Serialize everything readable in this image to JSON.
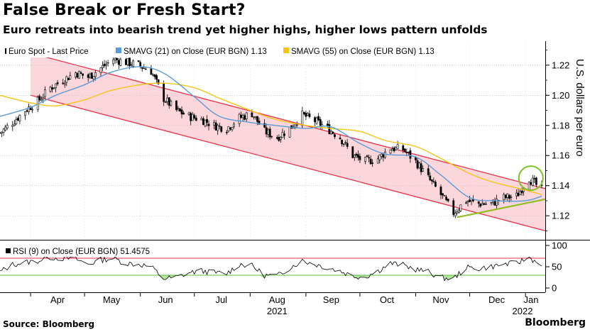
{
  "header": {
    "title": "False Break or Fresh Start?",
    "subtitle": "Euro retreats into bearish trend yet higher highs, higher lows pattern unfolds"
  },
  "footer": {
    "source": "Source: Bloomberg",
    "brand": "Bloomberg"
  },
  "colors": {
    "channel_fill": "#fbd7dc",
    "channel_line": "#e8334a",
    "sma21": "#5b9bd5",
    "sma55": "#f5c518",
    "support_line": "#8fbf1f",
    "circle": "#7cc11f",
    "rsi_oversold_fill": "#b6e3a2",
    "rsi_overbought_fill": "#f6b8bf",
    "rsi_upper_line": "#e8334a",
    "rsi_lower_line": "#5cbd3a"
  },
  "chart_data": [
    {
      "type": "line",
      "chart_style": "candlestick",
      "legend": [
        {
          "label": "Euro Spot - Last Price",
          "color": "#000000",
          "icon": "candle-icon"
        },
        {
          "label": "SMAVG (21)  on Close (EUR BGN) 1.13",
          "color": "#5b9bd5"
        },
        {
          "label": "SMAVG (55)  on Close (EUR BGN) 1.13",
          "color": "#f5c518"
        }
      ],
      "ylabel": "U.S. dollars per euro",
      "y_axis_position": "right",
      "ylim": [
        1.105,
        1.235
      ],
      "yticks": [
        1.12,
        1.14,
        1.16,
        1.18,
        1.2,
        1.22
      ],
      "ytick_labels": [
        "1.12",
        "1.14",
        "1.16",
        "1.18",
        "1.20",
        "1.22"
      ],
      "x_ticks": [
        {
          "date": "2021-04-01",
          "label": "Apr"
        },
        {
          "date": "2021-05-01",
          "label": "May"
        },
        {
          "date": "2021-06-01",
          "label": "Jun"
        },
        {
          "date": "2021-07-01",
          "label": "Jul"
        },
        {
          "date": "2021-08-01",
          "label": "Aug"
        },
        {
          "date": "2021-09-01",
          "label": "Sep"
        },
        {
          "date": "2021-10-01",
          "label": "Oct"
        },
        {
          "date": "2021-11-01",
          "label": "Nov"
        },
        {
          "date": "2021-12-01",
          "label": "Dec"
        },
        {
          "date": "2022-01-01",
          "label": "Jan"
        }
      ],
      "year_labels": [
        {
          "date": "2021-08-16",
          "label": "2021"
        },
        {
          "date": "2022-01-05",
          "label": "2022"
        }
      ],
      "xlim": [
        "2021-03-15",
        "2022-01-12"
      ],
      "series": [
        {
          "name": "Euro Spot - Last Price",
          "kind": "close",
          "points": [
            {
              "date": "2021-03-15",
              "y": 1.175
            },
            {
              "date": "2021-03-22",
              "y": 1.182
            },
            {
              "date": "2021-03-29",
              "y": 1.19
            },
            {
              "date": "2021-04-05",
              "y": 1.196
            },
            {
              "date": "2021-04-12",
              "y": 1.205
            },
            {
              "date": "2021-04-19",
              "y": 1.21
            },
            {
              "date": "2021-04-26",
              "y": 1.215
            },
            {
              "date": "2021-05-03",
              "y": 1.212
            },
            {
              "date": "2021-05-10",
              "y": 1.218
            },
            {
              "date": "2021-05-17",
              "y": 1.224
            },
            {
              "date": "2021-05-24",
              "y": 1.222
            },
            {
              "date": "2021-05-31",
              "y": 1.22
            },
            {
              "date": "2021-06-07",
              "y": 1.216
            },
            {
              "date": "2021-06-14",
              "y": 1.198
            },
            {
              "date": "2021-06-21",
              "y": 1.19
            },
            {
              "date": "2021-06-28",
              "y": 1.186
            },
            {
              "date": "2021-07-05",
              "y": 1.184
            },
            {
              "date": "2021-07-12",
              "y": 1.18
            },
            {
              "date": "2021-07-19",
              "y": 1.178
            },
            {
              "date": "2021-07-26",
              "y": 1.185
            },
            {
              "date": "2021-08-02",
              "y": 1.188
            },
            {
              "date": "2021-08-09",
              "y": 1.176
            },
            {
              "date": "2021-08-16",
              "y": 1.172
            },
            {
              "date": "2021-08-23",
              "y": 1.178
            },
            {
              "date": "2021-08-30",
              "y": 1.187
            },
            {
              "date": "2021-09-06",
              "y": 1.183
            },
            {
              "date": "2021-09-13",
              "y": 1.178
            },
            {
              "date": "2021-09-20",
              "y": 1.172
            },
            {
              "date": "2021-09-27",
              "y": 1.16
            },
            {
              "date": "2021-10-04",
              "y": 1.156
            },
            {
              "date": "2021-10-11",
              "y": 1.158
            },
            {
              "date": "2021-10-18",
              "y": 1.165
            },
            {
              "date": "2021-10-25",
              "y": 1.164
            },
            {
              "date": "2021-11-01",
              "y": 1.156
            },
            {
              "date": "2021-11-08",
              "y": 1.145
            },
            {
              "date": "2021-11-15",
              "y": 1.134
            },
            {
              "date": "2021-11-22",
              "y": 1.122
            },
            {
              "date": "2021-11-29",
              "y": 1.13
            },
            {
              "date": "2021-12-06",
              "y": 1.128
            },
            {
              "date": "2021-12-13",
              "y": 1.128
            },
            {
              "date": "2021-12-20",
              "y": 1.132
            },
            {
              "date": "2021-12-27",
              "y": 1.133
            },
            {
              "date": "2022-01-03",
              "y": 1.145
            },
            {
              "date": "2022-01-10",
              "y": 1.137
            }
          ]
        },
        {
          "name": "SMAVG (21)  on Close (EUR BGN) 1.13",
          "kind": "line",
          "color": "#5b9bd5",
          "points": [
            {
              "date": "2021-03-15",
              "y": 1.186
            },
            {
              "date": "2021-04-01",
              "y": 1.192
            },
            {
              "date": "2021-04-15",
              "y": 1.2
            },
            {
              "date": "2021-05-01",
              "y": 1.207
            },
            {
              "date": "2021-05-15",
              "y": 1.215
            },
            {
              "date": "2021-06-01",
              "y": 1.219
            },
            {
              "date": "2021-06-15",
              "y": 1.214
            },
            {
              "date": "2021-07-01",
              "y": 1.199
            },
            {
              "date": "2021-07-15",
              "y": 1.186
            },
            {
              "date": "2021-08-01",
              "y": 1.182
            },
            {
              "date": "2021-08-15",
              "y": 1.18
            },
            {
              "date": "2021-09-01",
              "y": 1.178
            },
            {
              "date": "2021-09-15",
              "y": 1.179
            },
            {
              "date": "2021-10-01",
              "y": 1.168
            },
            {
              "date": "2021-10-15",
              "y": 1.161
            },
            {
              "date": "2021-11-01",
              "y": 1.159
            },
            {
              "date": "2021-11-15",
              "y": 1.147
            },
            {
              "date": "2021-12-01",
              "y": 1.132
            },
            {
              "date": "2021-12-15",
              "y": 1.13
            },
            {
              "date": "2022-01-01",
              "y": 1.13
            },
            {
              "date": "2022-01-10",
              "y": 1.133
            }
          ]
        },
        {
          "name": "SMAVG (55)  on Close (EUR BGN) 1.13",
          "kind": "line",
          "color": "#f5c518",
          "points": [
            {
              "date": "2021-03-15",
              "y": 1.2
            },
            {
              "date": "2021-04-01",
              "y": 1.195
            },
            {
              "date": "2021-04-15",
              "y": 1.193
            },
            {
              "date": "2021-05-01",
              "y": 1.197
            },
            {
              "date": "2021-05-15",
              "y": 1.203
            },
            {
              "date": "2021-06-01",
              "y": 1.207
            },
            {
              "date": "2021-06-15",
              "y": 1.208
            },
            {
              "date": "2021-07-01",
              "y": 1.205
            },
            {
              "date": "2021-07-15",
              "y": 1.198
            },
            {
              "date": "2021-08-01",
              "y": 1.19
            },
            {
              "date": "2021-08-15",
              "y": 1.184
            },
            {
              "date": "2021-09-01",
              "y": 1.18
            },
            {
              "date": "2021-09-15",
              "y": 1.178
            },
            {
              "date": "2021-10-01",
              "y": 1.176
            },
            {
              "date": "2021-10-15",
              "y": 1.17
            },
            {
              "date": "2021-11-01",
              "y": 1.166
            },
            {
              "date": "2021-11-15",
              "y": 1.158
            },
            {
              "date": "2021-12-01",
              "y": 1.148
            },
            {
              "date": "2021-12-15",
              "y": 1.142
            },
            {
              "date": "2022-01-01",
              "y": 1.137
            },
            {
              "date": "2022-01-10",
              "y": 1.134
            }
          ]
        }
      ],
      "annotations": [
        {
          "type": "channel_upper",
          "points": [
            {
              "date": "2021-04-01",
              "y": 1.228
            },
            {
              "date": "2022-01-12",
              "y": 1.138
            }
          ]
        },
        {
          "type": "channel_lower",
          "points": [
            {
              "date": "2021-04-01",
              "y": 1.2
            },
            {
              "date": "2022-01-12",
              "y": 1.11
            }
          ]
        },
        {
          "type": "support_line",
          "points": [
            {
              "date": "2021-11-24",
              "y": 1.119
            },
            {
              "date": "2022-01-12",
              "y": 1.131
            }
          ]
        },
        {
          "type": "circle",
          "center": {
            "date": "2022-01-04",
            "y": 1.145
          }
        }
      ]
    },
    {
      "type": "line",
      "legend": [
        {
          "label": "RSI (9)  on Close (EUR BGN) 51.4575",
          "color": "#000000",
          "icon": "square-icon"
        }
      ],
      "y_axis_position": "right",
      "ylim": [
        -10,
        110
      ],
      "yticks": [
        0,
        50,
        100
      ],
      "ytick_labels": [
        "0",
        "50",
        "100"
      ],
      "reference_lines": [
        {
          "y": 70,
          "color": "#e8334a"
        },
        {
          "y": 30,
          "color": "#5cbd3a"
        }
      ],
      "series": [
        {
          "name": "RSI (9)  on Close (EUR BGN) 51.4575",
          "points": [
            {
              "date": "2021-03-15",
              "y": 38
            },
            {
              "date": "2021-03-22",
              "y": 55
            },
            {
              "date": "2021-03-29",
              "y": 60
            },
            {
              "date": "2021-04-05",
              "y": 64
            },
            {
              "date": "2021-04-12",
              "y": 72
            },
            {
              "date": "2021-04-19",
              "y": 70
            },
            {
              "date": "2021-04-26",
              "y": 68
            },
            {
              "date": "2021-05-03",
              "y": 56
            },
            {
              "date": "2021-05-10",
              "y": 66
            },
            {
              "date": "2021-05-17",
              "y": 70
            },
            {
              "date": "2021-05-24",
              "y": 58
            },
            {
              "date": "2021-05-31",
              "y": 56
            },
            {
              "date": "2021-06-07",
              "y": 50
            },
            {
              "date": "2021-06-14",
              "y": 22
            },
            {
              "date": "2021-06-21",
              "y": 25
            },
            {
              "date": "2021-06-28",
              "y": 36
            },
            {
              "date": "2021-07-05",
              "y": 40
            },
            {
              "date": "2021-07-12",
              "y": 36
            },
            {
              "date": "2021-07-19",
              "y": 34
            },
            {
              "date": "2021-07-26",
              "y": 56
            },
            {
              "date": "2021-08-02",
              "y": 52
            },
            {
              "date": "2021-08-09",
              "y": 30
            },
            {
              "date": "2021-08-16",
              "y": 28
            },
            {
              "date": "2021-08-23",
              "y": 48
            },
            {
              "date": "2021-08-30",
              "y": 64
            },
            {
              "date": "2021-09-06",
              "y": 56
            },
            {
              "date": "2021-09-13",
              "y": 48
            },
            {
              "date": "2021-09-20",
              "y": 40
            },
            {
              "date": "2021-09-27",
              "y": 28
            },
            {
              "date": "2021-10-04",
              "y": 26
            },
            {
              "date": "2021-10-11",
              "y": 40
            },
            {
              "date": "2021-10-18",
              "y": 58
            },
            {
              "date": "2021-10-25",
              "y": 54
            },
            {
              "date": "2021-11-01",
              "y": 44
            },
            {
              "date": "2021-11-08",
              "y": 38
            },
            {
              "date": "2021-11-15",
              "y": 24
            },
            {
              "date": "2021-11-22",
              "y": 22
            },
            {
              "date": "2021-11-29",
              "y": 48
            },
            {
              "date": "2021-12-06",
              "y": 46
            },
            {
              "date": "2021-12-13",
              "y": 50
            },
            {
              "date": "2021-12-20",
              "y": 56
            },
            {
              "date": "2021-12-27",
              "y": 58
            },
            {
              "date": "2022-01-03",
              "y": 72
            },
            {
              "date": "2022-01-06",
              "y": 64
            },
            {
              "date": "2022-01-10",
              "y": 51.5
            }
          ]
        }
      ]
    }
  ]
}
